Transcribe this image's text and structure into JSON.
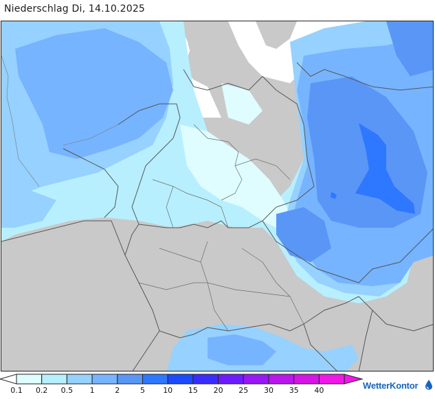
{
  "title": "Niederschlag Di, 14.10.2025",
  "map": {
    "region": "Germany and surrounding countries",
    "colors": {
      "no_data_land": "#c9c9c9",
      "sea": "#ffffff",
      "border_line": "#555555"
    }
  },
  "legend": {
    "unit_hint": "",
    "classes": [
      {
        "value": "0.1",
        "color": "#dffcff"
      },
      {
        "value": "0.2",
        "color": "#b7efff"
      },
      {
        "value": "0.5",
        "color": "#96d1ff"
      },
      {
        "value": "1",
        "color": "#77b4ff"
      },
      {
        "value": "2",
        "color": "#5a96f6"
      },
      {
        "value": "5",
        "color": "#2e78ff"
      },
      {
        "value": "10",
        "color": "#1c4bff"
      },
      {
        "value": "15",
        "color": "#3a2cff"
      },
      {
        "value": "20",
        "color": "#6e1cff"
      },
      {
        "value": "25",
        "color": "#9818f5"
      },
      {
        "value": "30",
        "color": "#b916ec"
      },
      {
        "value": "35",
        "color": "#d515e6"
      },
      {
        "value": "40",
        "color": "#f018e8"
      }
    ]
  },
  "brand": {
    "name": "WetterKontor",
    "color": "#1565c0",
    "icon": "raindrop-icon"
  }
}
